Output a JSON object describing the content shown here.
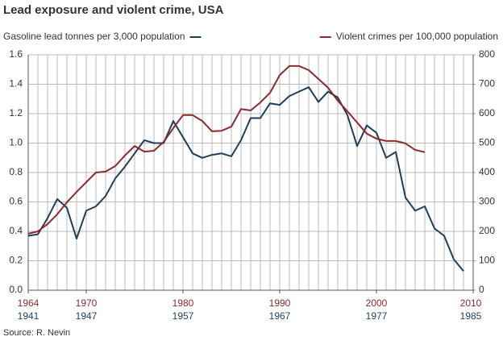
{
  "chart_data": {
    "type": "line",
    "title": "Lead exposure and violent crime, USA",
    "source": "Source: R. Nevin",
    "xlim": [
      1964,
      2010
    ],
    "xticks": [
      1964,
      1970,
      1980,
      1990,
      2000,
      2010
    ],
    "x2lim": [
      1941,
      1987
    ],
    "x2ticks": [
      1941,
      1947,
      1957,
      1967,
      1977,
      1985
    ],
    "ylim": [
      0,
      1.6
    ],
    "yticks": [
      {
        "value": 0,
        "label": "0.0"
      },
      {
        "value": 0.2,
        "label": "0.2"
      },
      {
        "value": 0.4,
        "label": "0.4"
      },
      {
        "value": 0.6,
        "label": "0.6"
      },
      {
        "value": 0.8,
        "label": "0.8"
      },
      {
        "value": 1,
        "label": "1.0"
      },
      {
        "value": 1.2,
        "label": "1.2"
      },
      {
        "value": 1.4,
        "label": "1.4"
      },
      {
        "value": 1.6,
        "label": "1.6"
      }
    ],
    "y2lim": [
      0,
      800
    ],
    "y2ticks": [
      0,
      100,
      200,
      300,
      400,
      500,
      600,
      700,
      800
    ],
    "grid": true,
    "series": [
      {
        "name": "Gasoline lead tonnes per 3,000 population",
        "color": "#1d3f5c",
        "axis": "y",
        "xaxis": "x2",
        "x": [
          1941,
          1942,
          1943,
          1944,
          1945,
          1946,
          1947,
          1948,
          1949,
          1950,
          1951,
          1952,
          1953,
          1954,
          1955,
          1956,
          1957,
          1958,
          1959,
          1960,
          1961,
          1962,
          1963,
          1964,
          1965,
          1966,
          1967,
          1968,
          1969,
          1970,
          1971,
          1972,
          1973,
          1974,
          1975,
          1976,
          1977,
          1978,
          1979,
          1980,
          1981,
          1982,
          1983,
          1984,
          1985,
          1986
        ],
        "values": [
          0.37,
          0.38,
          0.49,
          0.62,
          0.56,
          0.35,
          0.54,
          0.57,
          0.64,
          0.76,
          0.84,
          0.93,
          1.02,
          1.0,
          1.0,
          1.15,
          1.04,
          0.93,
          0.9,
          0.92,
          0.93,
          0.91,
          1.02,
          1.17,
          1.17,
          1.27,
          1.26,
          1.32,
          1.35,
          1.38,
          1.28,
          1.35,
          1.31,
          1.19,
          0.98,
          1.12,
          1.07,
          0.9,
          0.94,
          0.63,
          0.54,
          0.57,
          0.42,
          0.37,
          0.21,
          0.13
        ]
      },
      {
        "name": "Violent crimes per 100,000 population",
        "color": "#8c2a2e",
        "axis": "y2",
        "xaxis": "x",
        "x": [
          1964,
          1965,
          1966,
          1967,
          1968,
          1969,
          1970,
          1971,
          1972,
          1973,
          1974,
          1975,
          1976,
          1977,
          1978,
          1979,
          1980,
          1981,
          1982,
          1983,
          1984,
          1985,
          1986,
          1987,
          1988,
          1989,
          1990,
          1991,
          1992,
          1993,
          1994,
          1995,
          1996,
          1997,
          1998,
          1999,
          2000,
          2001,
          2002,
          2003,
          2004,
          2005
        ],
        "values": [
          192,
          200,
          225,
          258,
          299,
          334,
          367,
          400,
          403,
          422,
          458,
          490,
          471,
          474,
          504,
          551,
          595,
          595,
          575,
          540,
          542,
          556,
          616,
          611,
          638,
          671,
          731,
          762,
          762,
          748,
          718,
          688,
          644,
          608,
          570,
          532,
          515,
          507,
          507,
          499,
          477,
          469
        ]
      }
    ]
  }
}
